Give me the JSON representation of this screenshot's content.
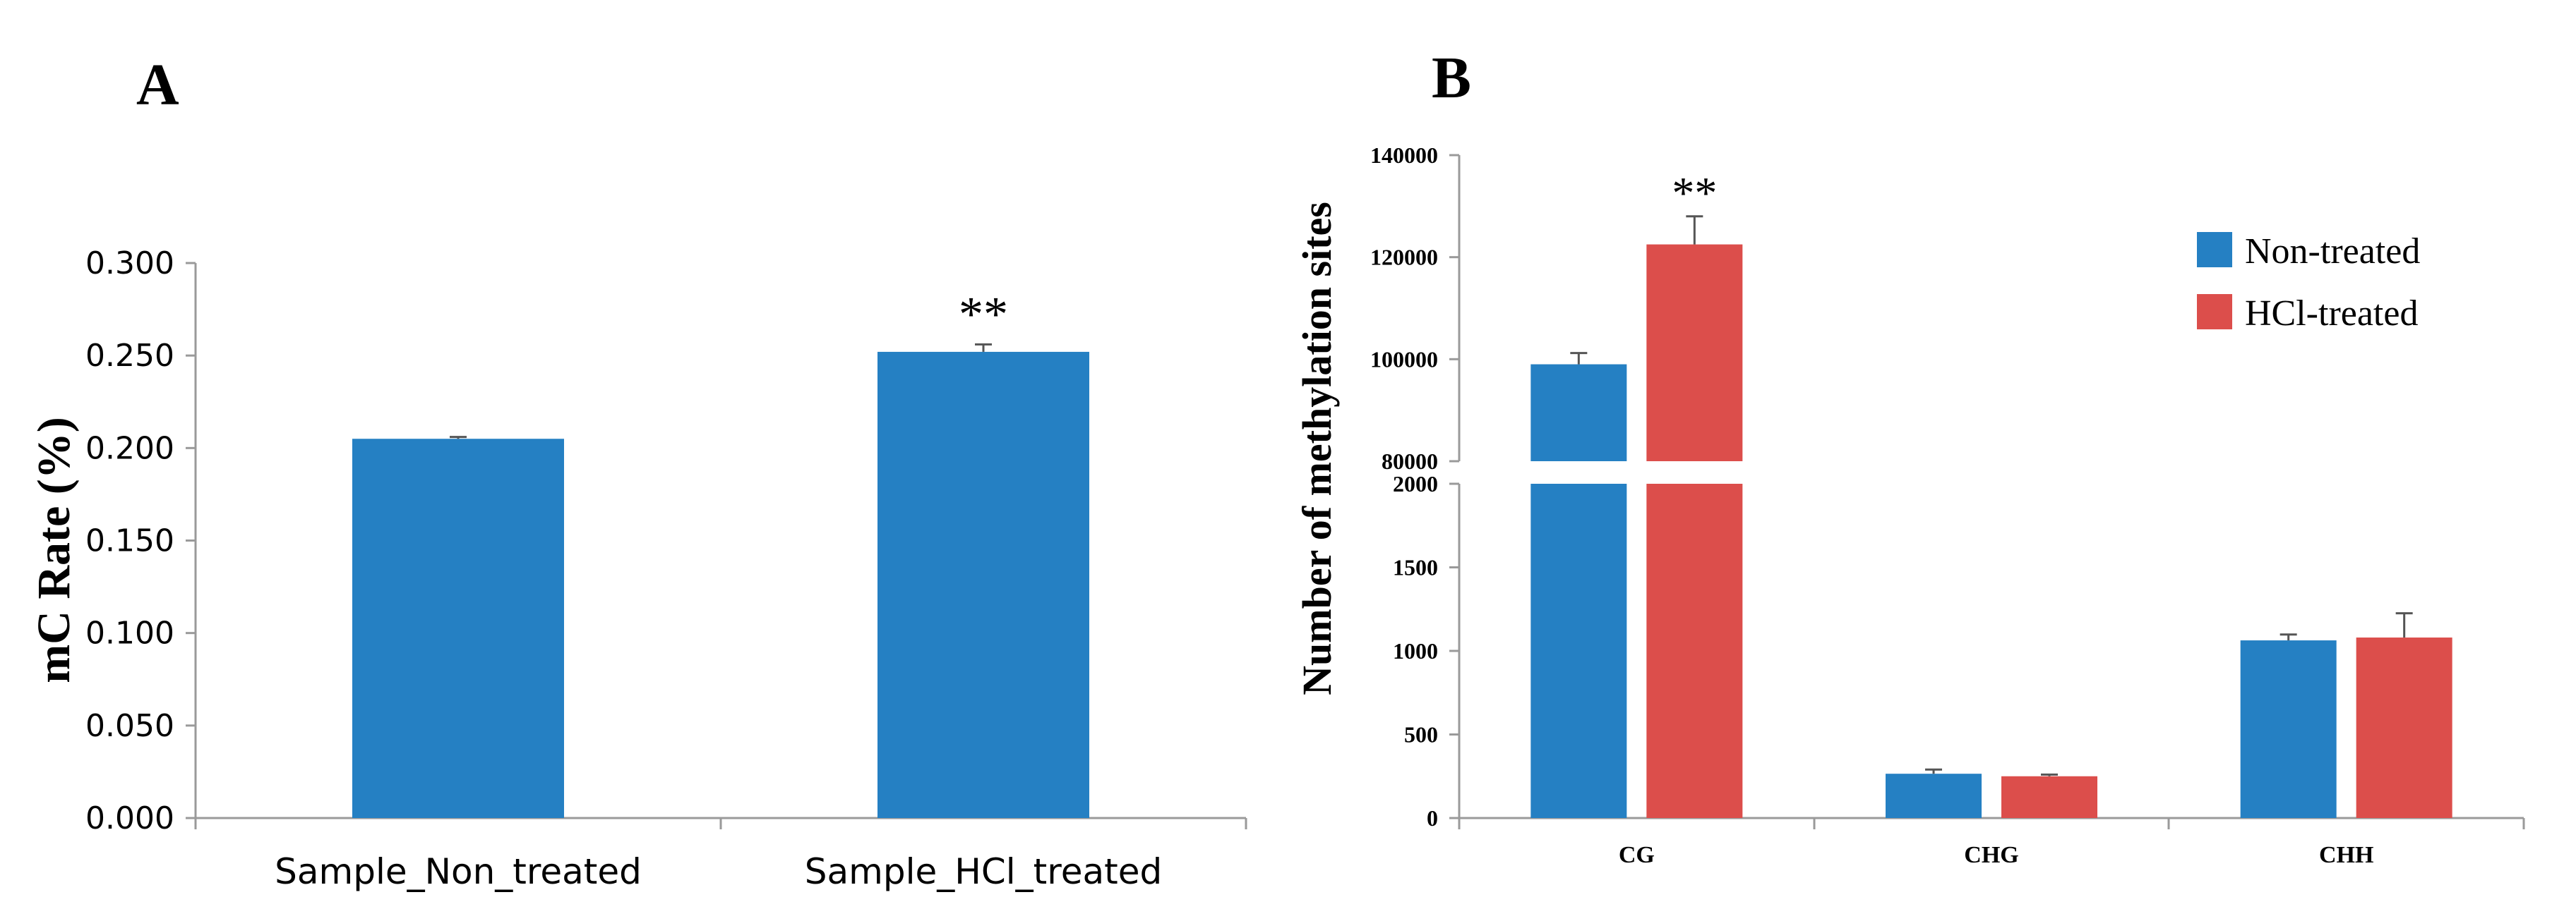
{
  "colors": {
    "non_treated": "#2580c3",
    "hcl_treated": "#dc4e4b",
    "axis": "#9a9a9a",
    "text": "#000000"
  },
  "chart_data": [
    {
      "panel_label": "A",
      "type": "bar",
      "ylabel": "mC Rate  (%)",
      "ylim": [
        0,
        0.3
      ],
      "yticks": [
        "0.000",
        "0.050",
        "0.100",
        "0.150",
        "0.200",
        "0.250",
        "0.300"
      ],
      "categories": [
        "Sample_Non_treated",
        "Sample_HCl_treated"
      ],
      "values": [
        0.205,
        0.252
      ],
      "errors": [
        0.001,
        0.004
      ],
      "annotations": [
        {
          "category_index": 1,
          "text": "**"
        }
      ]
    },
    {
      "panel_label": "B",
      "type": "bar",
      "ylabel": "Number of methylation sites",
      "broken_axis": true,
      "ylim_lower": [
        0,
        2000
      ],
      "yticks_lower": [
        "0",
        "500",
        "1000",
        "1500",
        "2000"
      ],
      "ylim_upper": [
        80000,
        140000
      ],
      "yticks_upper": [
        "80000",
        "100000",
        "120000",
        "140000"
      ],
      "categories": [
        "CG",
        "CHG",
        "CHH"
      ],
      "legend": "top-right",
      "series": [
        {
          "name": "Non-treated",
          "values": [
            99000,
            265,
            1063
          ],
          "errors": [
            2200,
            25,
            35
          ]
        },
        {
          "name": "HCl-treated",
          "values": [
            122500,
            250,
            1080
          ],
          "errors": [
            5500,
            10,
            145
          ]
        }
      ],
      "annotations": [
        {
          "category_index": 0,
          "series_index": 1,
          "text": "**"
        }
      ]
    }
  ]
}
